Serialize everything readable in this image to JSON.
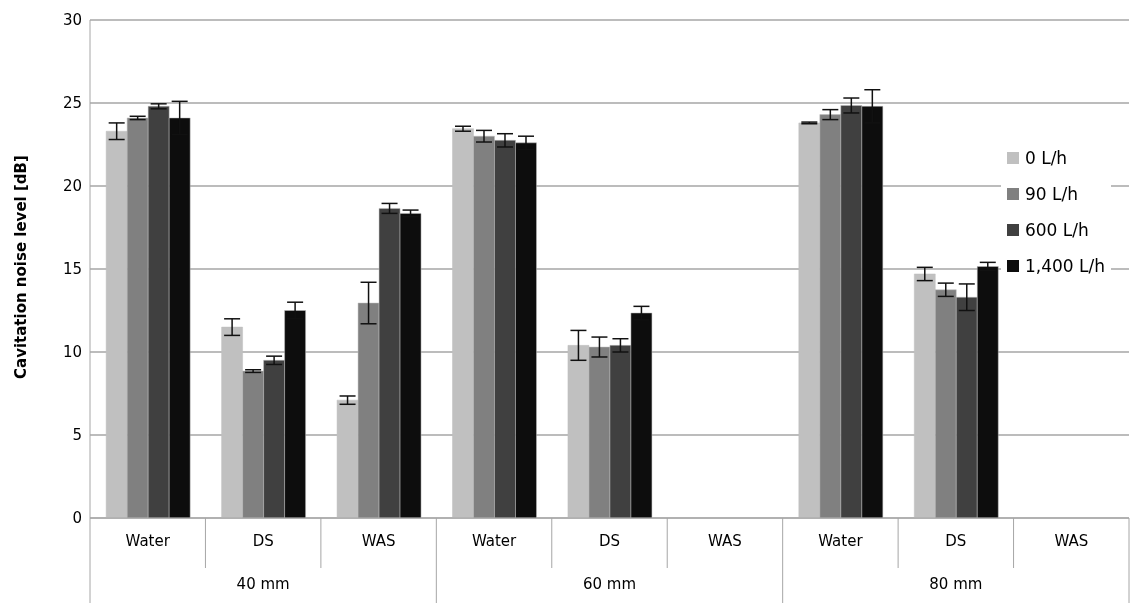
{
  "chart_data": {
    "type": "bar",
    "ylabel": "Cavitation noise level [dB]",
    "categories": [
      "Water",
      "DS",
      "WAS",
      "Water",
      "DS",
      "WAS",
      "Water",
      "DS",
      "WAS"
    ],
    "annotations": [
      "40 mm",
      "60 mm",
      "80 mm"
    ],
    "series": [
      {
        "name": "0 L/h",
        "color": "#c0c0c0",
        "values": [
          23.3,
          11.5,
          7.1,
          23.45,
          10.4,
          null,
          23.8,
          14.7,
          null
        ],
        "errors": [
          0.5,
          0.5,
          0.25,
          0.15,
          0.9,
          null,
          0.05,
          0.4,
          null
        ]
      },
      {
        "name": "90 L/h",
        "color": "#808080",
        "values": [
          24.1,
          8.85,
          12.95,
          23.0,
          10.3,
          null,
          24.3,
          13.75,
          null
        ],
        "errors": [
          0.1,
          0.08,
          1.25,
          0.35,
          0.6,
          null,
          0.3,
          0.4,
          null
        ]
      },
      {
        "name": "600 L/h",
        "color": "#404040",
        "values": [
          24.8,
          9.5,
          18.65,
          22.75,
          10.4,
          null,
          24.85,
          13.3,
          null
        ],
        "errors": [
          0.15,
          0.25,
          0.3,
          0.4,
          0.4,
          null,
          0.45,
          0.8,
          null
        ]
      },
      {
        "name": "1,400 L/h",
        "color": "#0d0d0d",
        "values": [
          24.1,
          12.5,
          18.35,
          22.6,
          12.35,
          null,
          24.8,
          15.15,
          null
        ],
        "errors": [
          1.0,
          0.5,
          0.2,
          0.4,
          0.4,
          null,
          1.0,
          0.25,
          null
        ]
      }
    ],
    "ylim": [
      0,
      30
    ],
    "yticks": [
      0,
      5,
      10,
      15,
      20,
      25,
      30
    ],
    "grid": "y",
    "legend": "right"
  }
}
